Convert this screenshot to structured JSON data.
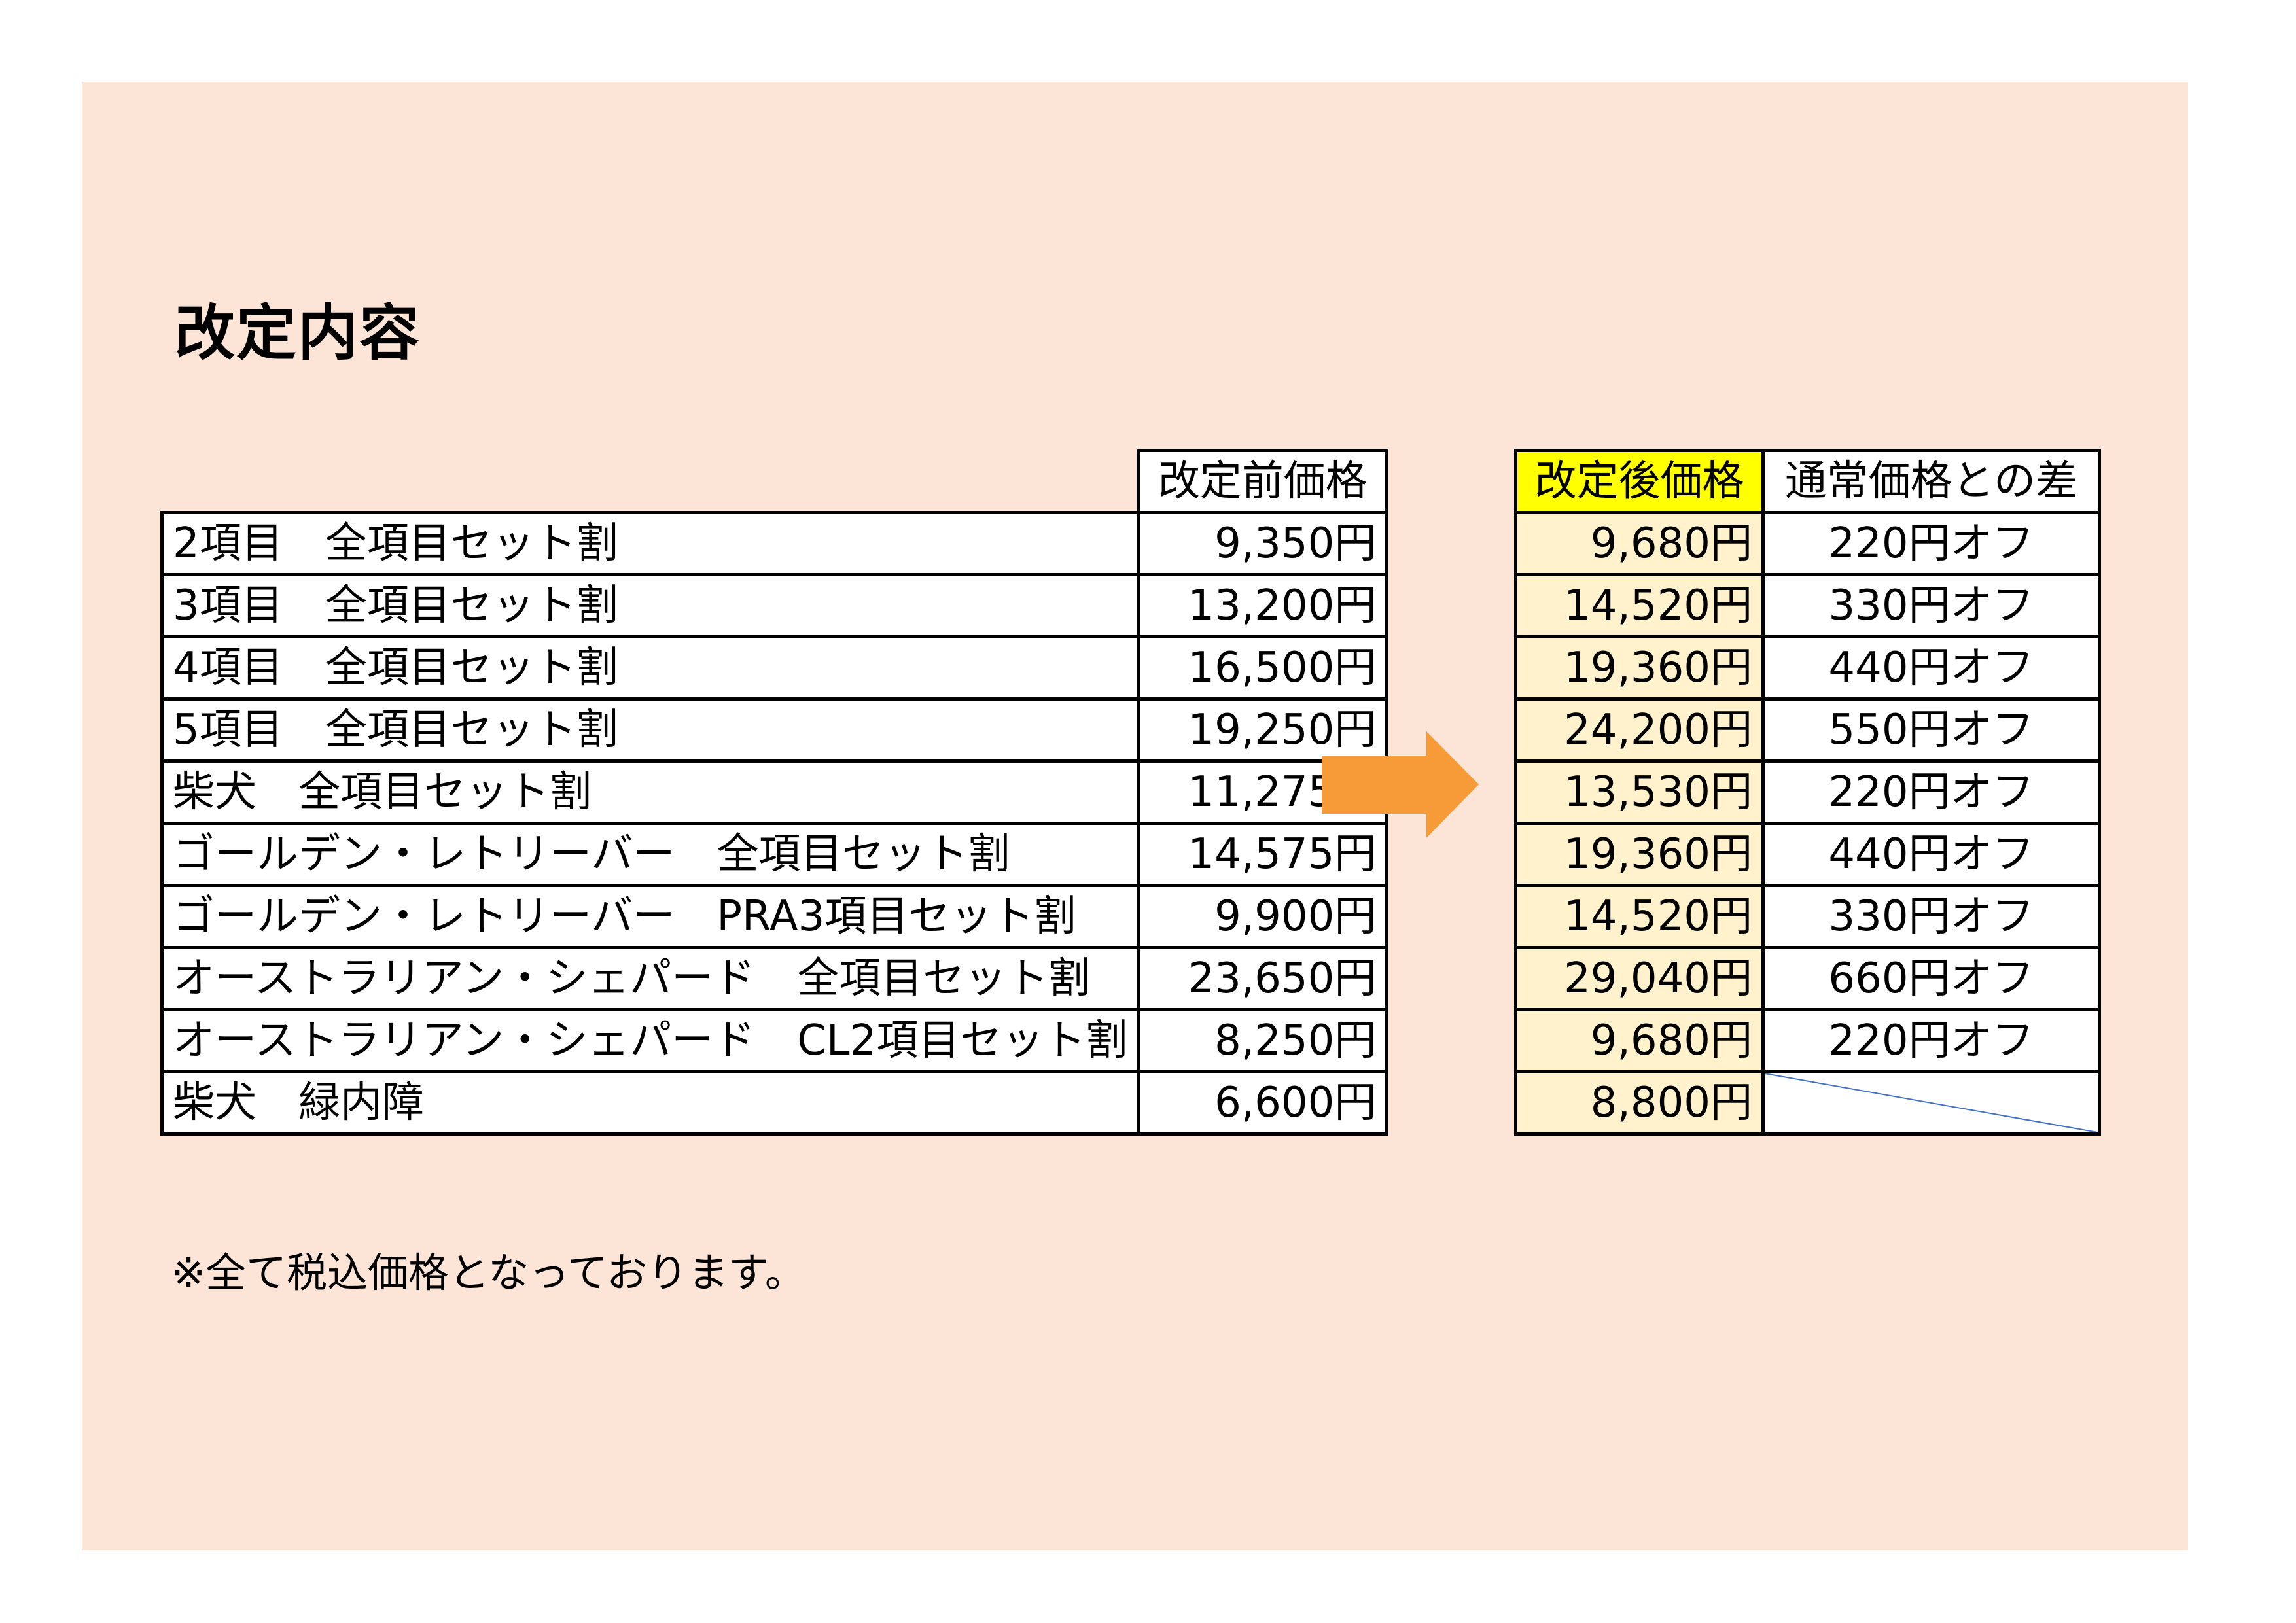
{
  "title": "改定内容",
  "before_table": {
    "header": "改定前価格",
    "rows": [
      {
        "name": "2項目　全項目セット割",
        "price": "9,350円"
      },
      {
        "name": "3項目　全項目セット割",
        "price": "13,200円"
      },
      {
        "name": "4項目　全項目セット割",
        "price": "16,500円"
      },
      {
        "name": "5項目　全項目セット割",
        "price": "19,250円"
      },
      {
        "name": "柴犬　全項目セット割",
        "price": "11,275円"
      },
      {
        "name": "ゴールデン・レトリーバー　全項目セット割",
        "price": "14,575円"
      },
      {
        "name": "ゴールデン・レトリーバー　PRA3項目セット割",
        "price": "9,900円"
      },
      {
        "name": "オーストラリアン・シェパード　全項目セット割",
        "price": "23,650円"
      },
      {
        "name": "オーストラリアン・シェパード　CL2項目セット割",
        "price": "8,250円"
      },
      {
        "name": "柴犬　緑内障",
        "price": "6,600円"
      }
    ]
  },
  "arrow_icon": "right-arrow",
  "after_table": {
    "header_price": "改定後価格",
    "header_diff": "通常価格との差",
    "rows": [
      {
        "price": "9,680円",
        "diff": "220円オフ"
      },
      {
        "price": "14,520円",
        "diff": "330円オフ"
      },
      {
        "price": "19,360円",
        "diff": "440円オフ"
      },
      {
        "price": "24,200円",
        "diff": "550円オフ"
      },
      {
        "price": "13,530円",
        "diff": "220円オフ"
      },
      {
        "price": "19,360円",
        "diff": "440円オフ"
      },
      {
        "price": "14,520円",
        "diff": "330円オフ"
      },
      {
        "price": "29,040円",
        "diff": "660円オフ"
      },
      {
        "price": "9,680円",
        "diff": "220円オフ"
      },
      {
        "price": "8,800円",
        "diff": ""
      }
    ]
  },
  "note": "※全て税込価格となっております。",
  "colors": {
    "background": "#fce4d6",
    "header_highlight": "#ffff00",
    "after_price_cells": "#fff2cc",
    "arrow": "#f79a38",
    "diagonal_line": "#4472c4"
  }
}
